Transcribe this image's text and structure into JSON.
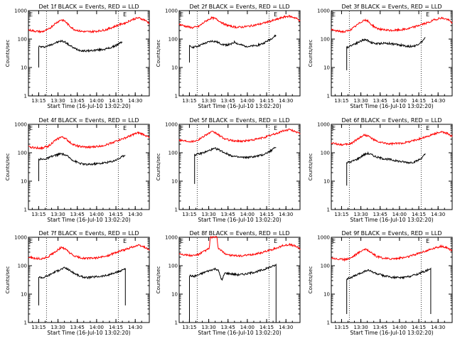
{
  "figure": {
    "background": "#ffffff",
    "axis_color": "#000000",
    "events_color": "#000000",
    "lld_color": "#ff0000",
    "ylabel": "Counts/sec",
    "xlabel": "Start Time (16-Jul-10 13:02:20)",
    "yticks": [
      "1",
      "10",
      "100",
      "1000"
    ],
    "xticks": [
      "13:15",
      "13:30",
      "13:45",
      "14:00",
      "14:15",
      "14:30"
    ],
    "flag_label": "E"
  },
  "chart_data": [
    {
      "type": "line",
      "title": "Det 1f BLACK = Events, RED = LLD",
      "x_unit": "minutes since 13:02:20",
      "xlim": [
        4.7,
        98.6
      ],
      "ylim": [
        1,
        1000
      ],
      "yscale": "log",
      "markers": [
        18.7,
        74.5
      ],
      "events_start": 12.7,
      "events_end": 77.7,
      "events_min": 10,
      "series": [
        {
          "name": "Events",
          "color": "#000000",
          "x": [
            12.7,
            16,
            20,
            25,
            30,
            33,
            36,
            40,
            45,
            50,
            55,
            60,
            65,
            70,
            75,
            77.7
          ],
          "y": [
            55,
            52,
            58,
            72,
            85,
            80,
            63,
            48,
            40,
            38,
            40,
            42,
            45,
            52,
            68,
            82
          ]
        },
        {
          "name": "LLD",
          "color": "#ff0000",
          "x": [
            4.7,
            10,
            15,
            20,
            25,
            30,
            33,
            36,
            40,
            45,
            50,
            55,
            60,
            65,
            70,
            75,
            80,
            85,
            90,
            95,
            98.6
          ],
          "y": [
            210,
            190,
            180,
            215,
            340,
            480,
            430,
            310,
            220,
            190,
            180,
            185,
            195,
            215,
            260,
            320,
            370,
            480,
            560,
            470,
            360
          ]
        }
      ]
    },
    {
      "type": "line",
      "title": "Det 2f BLACK = Events, RED = LLD",
      "x_unit": "minutes since 13:02:20",
      "xlim": [
        4.7,
        98.6
      ],
      "ylim": [
        1,
        1000
      ],
      "yscale": "log",
      "markers": [
        18.7,
        74.5
      ],
      "events_start": 12.7,
      "events_end": 80,
      "events_min": 15,
      "series": [
        {
          "name": "Events",
          "color": "#000000",
          "x": [
            12.7,
            16,
            20,
            25,
            30,
            33,
            36,
            40,
            45,
            48,
            50,
            55,
            60,
            65,
            70,
            75,
            80
          ],
          "y": [
            55,
            52,
            58,
            72,
            85,
            82,
            72,
            62,
            65,
            80,
            68,
            58,
            55,
            60,
            70,
            95,
            135
          ]
        },
        {
          "name": "LLD",
          "color": "#ff0000",
          "x": [
            4.7,
            10,
            15,
            20,
            25,
            30,
            33,
            36,
            40,
            45,
            50,
            55,
            60,
            65,
            70,
            75,
            80,
            85,
            90,
            95,
            98.6
          ],
          "y": [
            330,
            280,
            250,
            280,
            420,
            560,
            520,
            430,
            330,
            280,
            260,
            270,
            290,
            320,
            360,
            420,
            480,
            580,
            640,
            560,
            440
          ]
        }
      ]
    },
    {
      "type": "line",
      "title": "Det 3f BLACK = Events, RED = LLD",
      "x_unit": "minutes since 13:02:20",
      "xlim": [
        4.7,
        98.6
      ],
      "ylim": [
        1,
        1000
      ],
      "yscale": "log",
      "markers": [
        18.7,
        74.5
      ],
      "events_start": 16.7,
      "events_end": 77.7,
      "events_min": 8,
      "series": [
        {
          "name": "Events",
          "color": "#000000",
          "x": [
            16.7,
            20,
            25,
            30,
            33,
            36,
            40,
            45,
            50,
            55,
            60,
            65,
            70,
            75,
            77.7
          ],
          "y": [
            50,
            60,
            75,
            95,
            90,
            75,
            68,
            72,
            70,
            65,
            60,
            55,
            58,
            80,
            110
          ]
        },
        {
          "name": "LLD",
          "color": "#ff0000",
          "x": [
            4.7,
            10,
            15,
            20,
            25,
            30,
            33,
            36,
            40,
            45,
            50,
            55,
            60,
            65,
            70,
            75,
            80,
            85,
            90,
            95,
            98.6
          ],
          "y": [
            210,
            190,
            180,
            215,
            320,
            470,
            430,
            320,
            240,
            210,
            200,
            205,
            215,
            235,
            275,
            330,
            380,
            480,
            560,
            490,
            380
          ]
        }
      ]
    },
    {
      "type": "line",
      "title": "Det 4f BLACK = Events, RED = LLD",
      "x_unit": "minutes since 13:02:20",
      "xlim": [
        4.7,
        98.6
      ],
      "ylim": [
        1,
        1000
      ],
      "yscale": "log",
      "markers": [
        18.7,
        74.5
      ],
      "events_start": 12.7,
      "events_end": 80,
      "events_min": 10,
      "series": [
        {
          "name": "Events",
          "color": "#000000",
          "x": [
            12.7,
            16,
            20,
            25,
            30,
            33,
            36,
            40,
            45,
            50,
            55,
            60,
            65,
            70,
            75,
            80
          ],
          "y": [
            60,
            58,
            65,
            80,
            92,
            85,
            70,
            52,
            42,
            38,
            40,
            42,
            45,
            50,
            62,
            85
          ]
        },
        {
          "name": "LLD",
          "color": "#ff0000",
          "x": [
            4.7,
            10,
            15,
            20,
            25,
            30,
            33,
            36,
            40,
            45,
            50,
            55,
            60,
            65,
            70,
            75,
            80,
            85,
            90,
            95,
            98.6
          ],
          "y": [
            160,
            150,
            145,
            170,
            260,
            360,
            330,
            250,
            190,
            165,
            155,
            160,
            170,
            190,
            230,
            280,
            330,
            420,
            500,
            430,
            330
          ]
        }
      ]
    },
    {
      "type": "line",
      "title": "Det 5f BLACK = Events, RED = LLD",
      "x_unit": "minutes since 13:02:20",
      "xlim": [
        4.7,
        98.6
      ],
      "ylim": [
        1,
        1000
      ],
      "yscale": "log",
      "markers": [
        18.7,
        74.5
      ],
      "events_start": 16.7,
      "events_end": 80,
      "events_min": 8,
      "series": [
        {
          "name": "Events",
          "color": "#000000",
          "x": [
            16.7,
            20,
            25,
            30,
            33,
            36,
            40,
            45,
            50,
            55,
            60,
            65,
            70,
            75,
            80
          ],
          "y": [
            85,
            90,
            105,
            130,
            140,
            125,
            100,
            80,
            70,
            68,
            70,
            75,
            85,
            110,
            160
          ]
        },
        {
          "name": "LLD",
          "color": "#ff0000",
          "x": [
            4.7,
            10,
            15,
            20,
            25,
            30,
            33,
            36,
            40,
            45,
            50,
            55,
            60,
            65,
            70,
            75,
            80,
            85,
            90,
            95,
            98.6
          ],
          "y": [
            280,
            260,
            250,
            290,
            420,
            540,
            500,
            400,
            310,
            270,
            255,
            260,
            275,
            300,
            340,
            400,
            470,
            580,
            650,
            570,
            450
          ]
        }
      ]
    },
    {
      "type": "line",
      "title": "Det 6f BLACK = Events, RED = LLD",
      "x_unit": "minutes since 13:02:20",
      "xlim": [
        4.7,
        98.6
      ],
      "ylim": [
        1,
        1000
      ],
      "yscale": "log",
      "markers": [
        18.7,
        74.5
      ],
      "events_start": 16.7,
      "events_end": 77.7,
      "events_min": 7,
      "series": [
        {
          "name": "Events",
          "color": "#000000",
          "x": [
            16.7,
            20,
            25,
            30,
            33,
            36,
            40,
            45,
            50,
            55,
            60,
            65,
            70,
            75,
            77.7
          ],
          "y": [
            45,
            48,
            60,
            85,
            95,
            85,
            70,
            62,
            58,
            52,
            48,
            45,
            48,
            65,
            90
          ]
        },
        {
          "name": "LLD",
          "color": "#ff0000",
          "x": [
            4.7,
            10,
            15,
            20,
            25,
            30,
            33,
            36,
            40,
            45,
            50,
            55,
            60,
            65,
            70,
            75,
            80,
            85,
            90,
            95,
            98.6
          ],
          "y": [
            220,
            200,
            190,
            210,
            300,
            420,
            400,
            320,
            250,
            220,
            205,
            210,
            220,
            245,
            280,
            330,
            380,
            470,
            540,
            470,
            380
          ]
        }
      ]
    },
    {
      "type": "line",
      "title": "Det 7f BLACK = Events, RED = LLD",
      "x_unit": "minutes since 13:02:20",
      "xlim": [
        4.7,
        98.6
      ],
      "ylim": [
        1,
        1000
      ],
      "yscale": "log",
      "markers": [
        18.7,
        74.5
      ],
      "events_start": 12.7,
      "events_end": 80,
      "events_min": 4,
      "series": [
        {
          "name": "Events",
          "color": "#000000",
          "x": [
            12.7,
            16,
            20,
            25,
            30,
            33,
            36,
            40,
            45,
            50,
            55,
            60,
            65,
            70,
            75,
            80
          ],
          "y": [
            40,
            38,
            45,
            60,
            75,
            85,
            72,
            55,
            42,
            38,
            40,
            42,
            45,
            52,
            62,
            80
          ]
        },
        {
          "name": "LLD",
          "color": "#ff0000",
          "x": [
            4.7,
            10,
            15,
            20,
            25,
            30,
            33,
            36,
            40,
            45,
            50,
            55,
            60,
            65,
            70,
            75,
            80,
            85,
            90,
            95,
            98.6
          ],
          "y": [
            200,
            180,
            175,
            205,
            300,
            430,
            400,
            300,
            220,
            190,
            180,
            185,
            195,
            215,
            260,
            320,
            370,
            450,
            520,
            450,
            360
          ]
        }
      ]
    },
    {
      "type": "line",
      "title": "Det 8f BLACK = Events, RED = LLD",
      "x_unit": "minutes since 13:02:20",
      "xlim": [
        4.7,
        98.6
      ],
      "ylim": [
        1,
        1000
      ],
      "yscale": "log",
      "markers": [
        18.7,
        74.5
      ],
      "events_start": 12.7,
      "events_end": 80,
      "events_min": 1,
      "series": [
        {
          "name": "Events",
          "color": "#000000",
          "x": [
            12.7,
            16,
            20,
            25,
            30,
            33,
            35,
            38,
            40,
            45,
            50,
            55,
            60,
            65,
            70,
            75,
            80
          ],
          "y": [
            45,
            42,
            48,
            60,
            72,
            78,
            70,
            30,
            55,
            52,
            48,
            50,
            55,
            62,
            72,
            88,
            105
          ]
        },
        {
          "name": "LLD",
          "color": "#ff0000",
          "x": [
            4.7,
            10,
            15,
            20,
            25,
            28,
            29,
            34,
            35,
            40,
            45,
            50,
            55,
            60,
            65,
            70,
            75,
            80,
            85,
            90,
            95,
            98.6
          ],
          "y": [
            270,
            240,
            225,
            250,
            340,
            400,
            1000,
            1000,
            420,
            270,
            230,
            220,
            225,
            240,
            265,
            300,
            350,
            410,
            500,
            560,
            490,
            390
          ]
        }
      ]
    },
    {
      "type": "line",
      "title": "Det 9f BLACK = Events, RED = LLD",
      "x_unit": "minutes since 13:02:20",
      "xlim": [
        4.7,
        98.6
      ],
      "ylim": [
        1,
        1000
      ],
      "yscale": "log",
      "markers": [
        18.7,
        74.5
      ],
      "events_start": 16.7,
      "events_end": 82,
      "events_min": 2,
      "series": [
        {
          "name": "Events",
          "color": "#000000",
          "x": [
            16.7,
            20,
            25,
            30,
            33,
            36,
            40,
            45,
            50,
            55,
            60,
            65,
            70,
            75,
            80,
            82
          ],
          "y": [
            35,
            38,
            48,
            62,
            70,
            62,
            52,
            45,
            40,
            38,
            38,
            42,
            48,
            58,
            72,
            85
          ]
        },
        {
          "name": "LLD",
          "color": "#ff0000",
          "x": [
            4.7,
            10,
            15,
            20,
            25,
            30,
            33,
            36,
            40,
            45,
            50,
            55,
            60,
            65,
            70,
            75,
            80,
            85,
            90,
            95,
            98.6
          ],
          "y": [
            190,
            170,
            165,
            190,
            270,
            380,
            360,
            280,
            210,
            185,
            175,
            180,
            190,
            210,
            250,
            300,
            350,
            420,
            480,
            420,
            340
          ]
        }
      ]
    }
  ]
}
